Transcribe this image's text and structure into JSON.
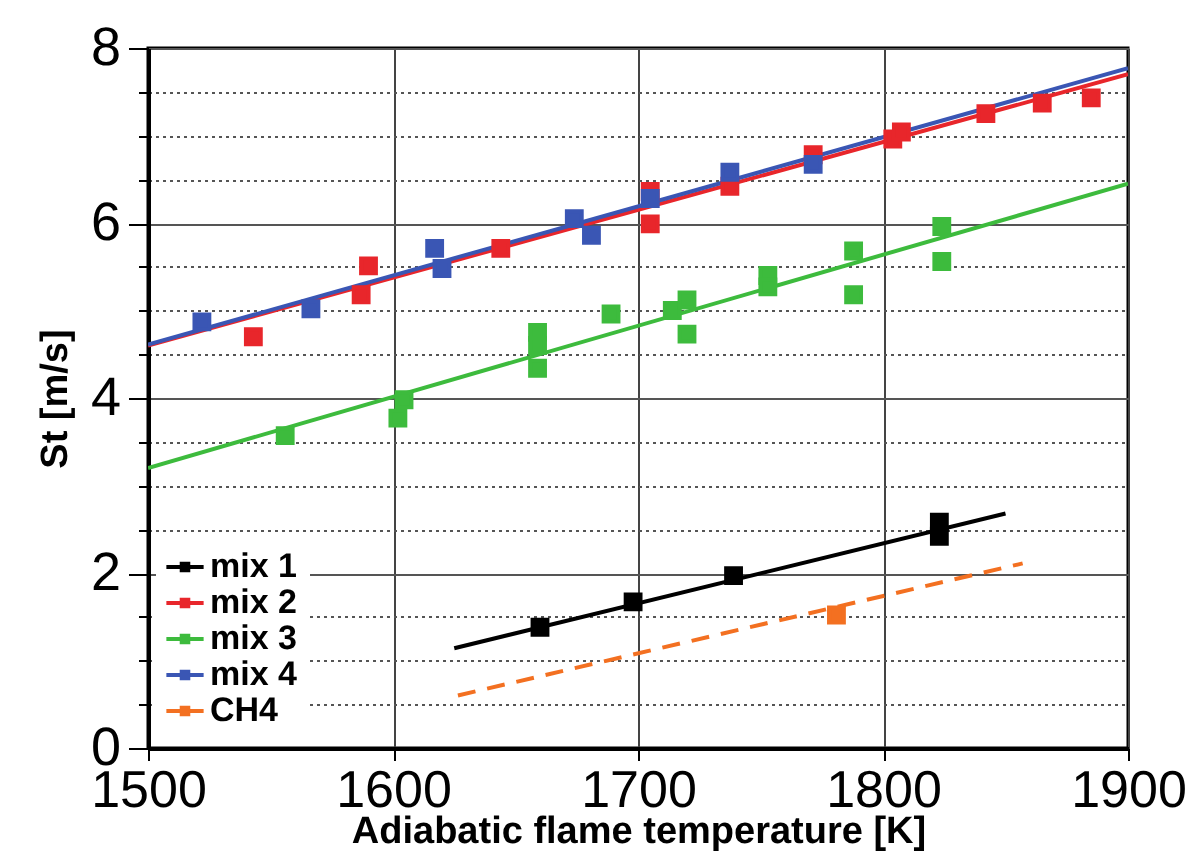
{
  "chart_data": {
    "type": "scatter",
    "xlabel": "Adiabatic flame temperature [K]",
    "ylabel": "St [m/s]",
    "xlim": [
      1500,
      1900
    ],
    "xticks": [
      1500,
      1600,
      1700,
      1800,
      1900
    ],
    "ylim": [
      0,
      8
    ],
    "yticks": [
      0,
      {
        "value": 0.5,
        "label": null
      },
      {
        "value": 1,
        "label": null
      },
      {
        "value": 1.5,
        "label": null
      },
      2,
      {
        "value": 2.5,
        "label": null
      },
      {
        "value": 3,
        "label": null
      },
      {
        "value": 3.5,
        "label": null
      },
      4,
      {
        "value": 4.5,
        "label": null
      },
      {
        "value": 5,
        "label": null
      },
      {
        "value": 5.5,
        "label": null
      },
      6,
      {
        "value": 6.5,
        "label": null
      },
      {
        "value": 7,
        "label": null
      },
      {
        "value": 7.5,
        "label": null
      },
      8
    ],
    "grid": true,
    "legend": "bottom left",
    "marker": "square",
    "series": [
      {
        "name": "mix 1",
        "color": "#000000",
        "x": [
          1660,
          1698,
          1739,
          1823,
          1823
        ],
        "values": [
          1.38,
          1.67,
          1.97,
          2.58,
          2.42
        ]
      },
      {
        "name": "mix 2",
        "color": "#e8262b",
        "x": [
          1543,
          1587,
          1590,
          1644,
          1705,
          1705,
          1737.5,
          1771.5,
          1804,
          1807.5,
          1842,
          1865,
          1885
        ],
        "values": [
          4.7,
          5.18,
          5.51,
          5.71,
          6.36,
          5.99,
          6.42,
          6.78,
          6.96,
          7.04,
          7.25,
          7.37,
          7.43
        ]
      },
      {
        "name": "mix 3",
        "color": "#3dbb3d",
        "x": [
          1556,
          1602,
          1604.5,
          1659,
          1659,
          1659,
          1689,
          1714,
          1720,
          1720,
          1753,
          1753,
          1788,
          1788,
          1824,
          1824
        ],
        "values": [
          3.57,
          3.77,
          3.98,
          4.75,
          4.6,
          4.34,
          4.96,
          5.0,
          5.12,
          4.73,
          5.4,
          5.27,
          5.68,
          5.18,
          5.96,
          5.56
        ]
      },
      {
        "name": "mix 4",
        "color": "#3a56b4",
        "x": [
          1522,
          1566.5,
          1617,
          1620,
          1674,
          1681,
          1705,
          1737.5,
          1771.5
        ],
        "values": [
          4.87,
          5.02,
          5.71,
          5.48,
          6.05,
          5.86,
          6.28,
          6.58,
          6.67
        ]
      },
      {
        "name": "CH4",
        "color": "#f37021",
        "x": [
          1781
        ],
        "values": [
          1.52
        ]
      },
      {
        "type": "line",
        "marker": "none",
        "color": "#000000",
        "x": [
          1625,
          1850
        ],
        "values": [
          1.14,
          2.68
        ]
      },
      {
        "type": "line",
        "marker": "none",
        "color": "#e8262b",
        "x": [
          1500,
          1900
        ],
        "values": [
          4.6,
          7.7
        ]
      },
      {
        "type": "line",
        "marker": "none",
        "color": "#3dbb3d",
        "x": [
          1500,
          1900
        ],
        "values": [
          3.2,
          6.45
        ]
      },
      {
        "type": "line",
        "marker": "none",
        "color": "#3a56b4",
        "x": [
          1500,
          1900
        ],
        "values": [
          4.61,
          7.77
        ]
      },
      {
        "type": "line",
        "marker": "none",
        "color": "#f37021",
        "line_style": "dashed",
        "x": [
          1626.5,
          1857
        ],
        "values": [
          0.6,
          2.11
        ]
      }
    ]
  }
}
